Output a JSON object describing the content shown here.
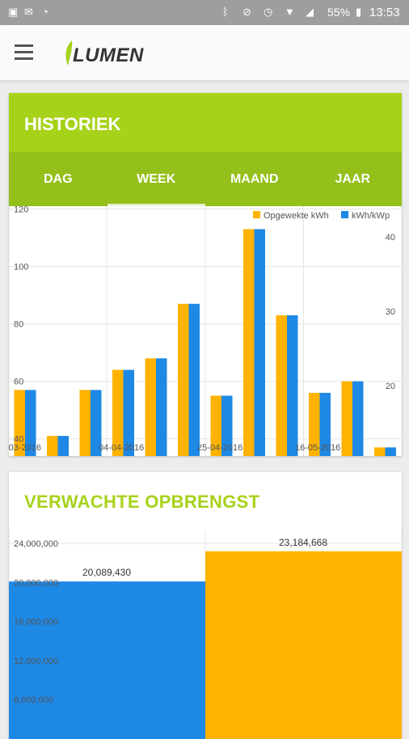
{
  "status_bar": {
    "icons": [
      "image-icon",
      "mail-icon",
      "sync-icon",
      "bluetooth-icon",
      "bell-off-icon",
      "alarm-icon",
      "wifi-icon",
      "signal-icon"
    ],
    "battery": "55%",
    "time": "13:53"
  },
  "appbar": {
    "logo_text": "LUMEN",
    "menu_icon": "menu-icon"
  },
  "colors": {
    "green": "#a7d21a",
    "tab_green": "#93c01a",
    "orange": "#ffb300",
    "blue": "#1e88e5"
  },
  "historiek": {
    "title": "HISTORIEK",
    "tabs": [
      "DAG",
      "WEEK",
      "MAAND",
      "JAAR"
    ],
    "active_tab": "WEEK"
  },
  "verwachte": {
    "title": "VERWACHTE OPBRENGST"
  },
  "chart_data": [
    {
      "type": "bar",
      "legend": [
        "Opgewekte kWh",
        "kWh/kWp"
      ],
      "legend_position": "top-right",
      "x_tick_labels": [
        "-03-2016",
        "04-04-2016",
        "25-04-2016",
        "16-05-2016"
      ],
      "y_left_ticks": [
        "120",
        "100",
        "80",
        "60",
        "40"
      ],
      "y_right_ticks": [
        "40",
        "30",
        "20"
      ],
      "ylim": [
        34,
        121
      ],
      "grid": true,
      "series": [
        {
          "name": "Opgewekte kWh",
          "values": [
            57,
            41,
            57,
            64,
            68,
            87,
            55,
            113,
            83,
            56,
            60,
            37
          ]
        },
        {
          "name": "kWh/kWp",
          "values": [
            57,
            41,
            57,
            64,
            68,
            87,
            55,
            113,
            83,
            56,
            60,
            37
          ]
        }
      ]
    },
    {
      "type": "bar",
      "categories": [
        "",
        ""
      ],
      "values": [
        20089430,
        23184668
      ],
      "value_labels": [
        "20,089,430",
        "23,184,668"
      ],
      "bar_colors": [
        "#1e88e5",
        "#ffb300"
      ],
      "y_ticks": [
        "24,000,000",
        "20,000,000",
        "16,000,000",
        "12,000,000",
        "8,000,000"
      ],
      "ylim": [
        5000000,
        26000000
      ],
      "grid": true
    }
  ]
}
